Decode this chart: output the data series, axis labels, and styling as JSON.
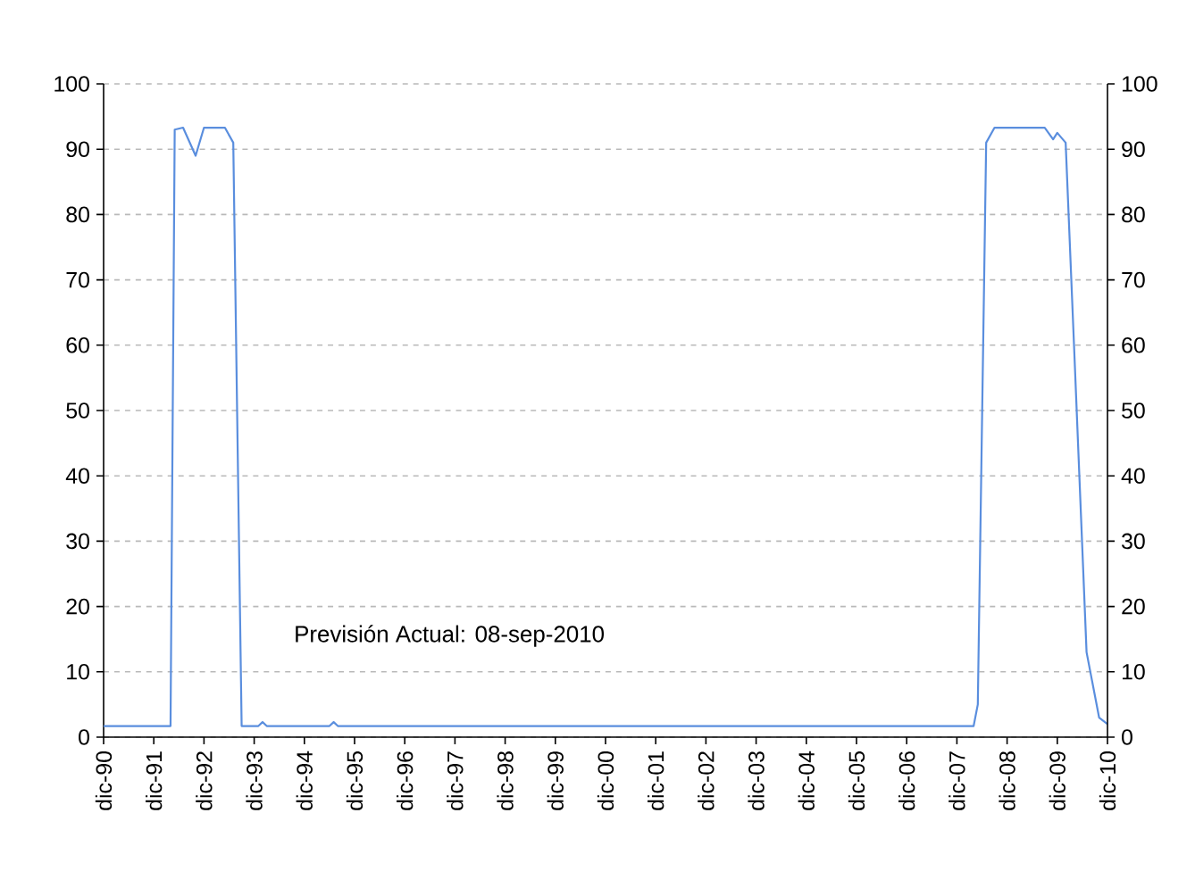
{
  "chart_data": {
    "type": "line",
    "annotations": [
      "Previsión Actual:  08-sep-2010"
    ],
    "x": [
      "1990-12",
      "1992-04",
      "1992-05",
      "1992-07",
      "1992-10",
      "1992-12",
      "1993-05",
      "1993-07",
      "1993-09",
      "1994-01",
      "1994-02",
      "1994-03",
      "1995-06",
      "1995-07",
      "1995-08",
      "2008-04",
      "2008-05",
      "2008-07",
      "2008-09",
      "2009-09",
      "2009-11",
      "2009-12",
      "2010-02",
      "2010-04",
      "2010-07",
      "2010-10",
      "2010-12"
    ],
    "series": [
      {
        "color": "#5a8ede",
        "values": [
          1.7,
          1.7,
          93,
          93.3,
          89,
          93.3,
          93.3,
          91,
          1.7,
          1.7,
          2.3,
          1.7,
          1.7,
          2.3,
          1.7,
          1.7,
          5,
          91,
          93.3,
          93.3,
          91.5,
          92.5,
          91,
          60,
          13,
          3,
          2
        ]
      }
    ],
    "xlim": [
      "1990-12",
      "2010-12"
    ],
    "xticks": [
      {
        "value": "1990-12",
        "label": "dic-90"
      },
      {
        "value": "1991-12",
        "label": "dic-91"
      },
      {
        "value": "1992-12",
        "label": "dic-92"
      },
      {
        "value": "1993-12",
        "label": "dic-93"
      },
      {
        "value": "1994-12",
        "label": "dic-94"
      },
      {
        "value": "1995-12",
        "label": "dic-95"
      },
      {
        "value": "1996-12",
        "label": "dic-96"
      },
      {
        "value": "1997-12",
        "label": "dic-97"
      },
      {
        "value": "1998-12",
        "label": "dic-98"
      },
      {
        "value": "1999-12",
        "label": "dic-99"
      },
      {
        "value": "2000-12",
        "label": "dic-00"
      },
      {
        "value": "2001-12",
        "label": "dic-01"
      },
      {
        "value": "2002-12",
        "label": "dic-02"
      },
      {
        "value": "2003-12",
        "label": "dic-03"
      },
      {
        "value": "2004-12",
        "label": "dic-04"
      },
      {
        "value": "2005-12",
        "label": "dic-05"
      },
      {
        "value": "2006-12",
        "label": "dic-06"
      },
      {
        "value": "2007-12",
        "label": "dic-07"
      },
      {
        "value": "2008-12",
        "label": "dic-08"
      },
      {
        "value": "2009-12",
        "label": "dic-09"
      },
      {
        "value": "2010-12",
        "label": "dic-10"
      }
    ],
    "ylim": [
      0,
      100
    ],
    "yticks": [
      0,
      10,
      20,
      30,
      40,
      50,
      60,
      70,
      80,
      90,
      100
    ],
    "y2lim": [
      0,
      100
    ],
    "y2ticks": [
      0,
      10,
      20,
      30,
      40,
      50,
      60,
      70,
      80,
      90,
      100
    ],
    "grid": "y",
    "line_style": "solid"
  }
}
